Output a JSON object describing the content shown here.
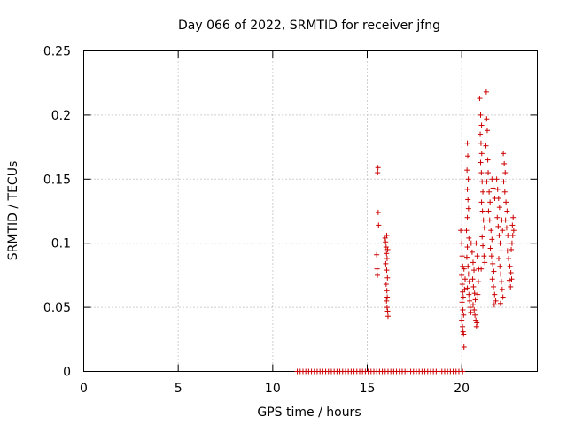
{
  "chart_data": {
    "type": "scatter",
    "title": "Day 066 of 2022, SRMTID for receiver jfng",
    "xlabel": "GPS time / hours",
    "ylabel": "SRMTID / TECUs",
    "xlim": [
      0,
      24
    ],
    "ylim": [
      0,
      0.25
    ],
    "grid": true,
    "legend": "none",
    "marker": "+",
    "color": "#cc0000",
    "x_ticks": [
      0,
      5,
      10,
      15,
      20
    ],
    "x_tick_labels": [
      "0",
      "5",
      "10",
      "15",
      "20"
    ],
    "y_ticks": [
      0,
      0.05,
      0.1,
      0.15,
      0.2,
      0.25
    ],
    "y_tick_labels": [
      "0",
      "0.05",
      "0.1",
      "0.15",
      "0.2",
      "0.25"
    ],
    "series": [
      {
        "points": [
          [
            11.3,
            0
          ],
          [
            11.45,
            0
          ],
          [
            11.6,
            0
          ],
          [
            11.75,
            0
          ],
          [
            11.9,
            0
          ],
          [
            12.05,
            0
          ],
          [
            12.2,
            0
          ],
          [
            12.35,
            0
          ],
          [
            12.5,
            0
          ],
          [
            12.65,
            0
          ],
          [
            12.8,
            0
          ],
          [
            12.95,
            0
          ],
          [
            13.1,
            0
          ],
          [
            13.25,
            0
          ],
          [
            13.4,
            0
          ],
          [
            13.55,
            0
          ],
          [
            13.7,
            0
          ],
          [
            13.85,
            0
          ],
          [
            14.0,
            0
          ],
          [
            14.15,
            0
          ],
          [
            14.3,
            0
          ],
          [
            14.45,
            0
          ],
          [
            14.6,
            0
          ],
          [
            14.75,
            0
          ],
          [
            14.9,
            0
          ],
          [
            15.05,
            0
          ],
          [
            15.2,
            0
          ],
          [
            15.35,
            0
          ],
          [
            15.5,
            0
          ],
          [
            15.65,
            0
          ],
          [
            15.8,
            0
          ],
          [
            15.95,
            0
          ],
          [
            16.1,
            0
          ],
          [
            16.25,
            0
          ],
          [
            16.4,
            0
          ],
          [
            16.55,
            0
          ],
          [
            16.7,
            0
          ],
          [
            16.85,
            0
          ],
          [
            17.0,
            0
          ],
          [
            17.15,
            0
          ],
          [
            17.3,
            0
          ],
          [
            17.45,
            0
          ],
          [
            17.6,
            0
          ],
          [
            17.75,
            0
          ],
          [
            17.9,
            0
          ],
          [
            18.05,
            0
          ],
          [
            18.2,
            0
          ],
          [
            18.35,
            0
          ],
          [
            18.5,
            0
          ],
          [
            18.65,
            0
          ],
          [
            18.8,
            0
          ],
          [
            18.95,
            0
          ],
          [
            19.1,
            0
          ],
          [
            19.25,
            0
          ],
          [
            19.4,
            0
          ],
          [
            19.55,
            0
          ],
          [
            19.7,
            0
          ],
          [
            19.85,
            0
          ],
          [
            20.05,
            0
          ],
          [
            15.55,
            0.155
          ],
          [
            15.57,
            0.159
          ],
          [
            15.58,
            0.124
          ],
          [
            15.6,
            0.114
          ],
          [
            15.5,
            0.091
          ],
          [
            15.52,
            0.08
          ],
          [
            15.54,
            0.075
          ],
          [
            15.95,
            0.104
          ],
          [
            15.97,
            0.101
          ],
          [
            16.0,
            0.097
          ],
          [
            16.02,
            0.092
          ],
          [
            16.05,
            0.088
          ],
          [
            15.98,
            0.084
          ],
          [
            16.03,
            0.079
          ],
          [
            16.07,
            0.073
          ],
          [
            16.0,
            0.068
          ],
          [
            16.04,
            0.063
          ],
          [
            16.06,
            0.058
          ],
          [
            16.02,
            0.055
          ],
          [
            16.05,
            0.05
          ],
          [
            16.08,
            0.047
          ],
          [
            16.1,
            0.043
          ],
          [
            16.03,
            0.106
          ],
          [
            16.08,
            0.095
          ],
          [
            19.95,
            0.11
          ],
          [
            20.0,
            0.1
          ],
          [
            20.02,
            0.09
          ],
          [
            20.05,
            0.082
          ],
          [
            20.0,
            0.075
          ],
          [
            20.03,
            0.068
          ],
          [
            20.05,
            0.062
          ],
          [
            20.08,
            0.058
          ],
          [
            20.02,
            0.054
          ],
          [
            20.06,
            0.048
          ],
          [
            20.1,
            0.044
          ],
          [
            20.0,
            0.04
          ],
          [
            20.04,
            0.035
          ],
          [
            20.07,
            0.031
          ],
          [
            20.1,
            0.029
          ],
          [
            20.12,
            0.019
          ],
          [
            20.15,
            0.064
          ],
          [
            20.18,
            0.072
          ],
          [
            20.12,
            0.08
          ],
          [
            20.3,
            0.178
          ],
          [
            20.32,
            0.168
          ],
          [
            20.28,
            0.157
          ],
          [
            20.35,
            0.15
          ],
          [
            20.3,
            0.142
          ],
          [
            20.33,
            0.134
          ],
          [
            20.36,
            0.127
          ],
          [
            20.3,
            0.12
          ],
          [
            20.25,
            0.11
          ],
          [
            20.38,
            0.104
          ],
          [
            20.3,
            0.097
          ],
          [
            20.27,
            0.089
          ],
          [
            20.33,
            0.082
          ],
          [
            20.36,
            0.076
          ],
          [
            20.4,
            0.07
          ],
          [
            20.3,
            0.065
          ],
          [
            20.38,
            0.06
          ],
          [
            20.42,
            0.055
          ],
          [
            20.45,
            0.05
          ],
          [
            20.48,
            0.046
          ],
          [
            20.5,
            0.1
          ],
          [
            20.55,
            0.093
          ],
          [
            20.6,
            0.085
          ],
          [
            20.65,
            0.079
          ],
          [
            20.58,
            0.072
          ],
          [
            20.62,
            0.066
          ],
          [
            20.68,
            0.061
          ],
          [
            20.72,
            0.056
          ],
          [
            20.6,
            0.052
          ],
          [
            20.66,
            0.048
          ],
          [
            20.7,
            0.044
          ],
          [
            20.75,
            0.04
          ],
          [
            20.8,
            0.038
          ],
          [
            20.78,
            0.035
          ],
          [
            20.85,
            0.06
          ],
          [
            20.88,
            0.07
          ],
          [
            20.9,
            0.08
          ],
          [
            20.82,
            0.09
          ],
          [
            20.76,
            0.1
          ],
          [
            20.95,
            0.213
          ],
          [
            21.0,
            0.2
          ],
          [
            21.05,
            0.192
          ],
          [
            20.98,
            0.185
          ],
          [
            21.02,
            0.178
          ],
          [
            21.06,
            0.17
          ],
          [
            21.0,
            0.163
          ],
          [
            21.04,
            0.155
          ],
          [
            21.08,
            0.148
          ],
          [
            21.12,
            0.14
          ],
          [
            21.05,
            0.132
          ],
          [
            21.1,
            0.125
          ],
          [
            21.15,
            0.118
          ],
          [
            21.2,
            0.112
          ],
          [
            21.08,
            0.105
          ],
          [
            21.12,
            0.098
          ],
          [
            21.18,
            0.09
          ],
          [
            21.22,
            0.085
          ],
          [
            21.03,
            0.08
          ],
          [
            21.3,
            0.218
          ],
          [
            21.32,
            0.197
          ],
          [
            21.35,
            0.188
          ],
          [
            21.28,
            0.176
          ],
          [
            21.38,
            0.165
          ],
          [
            21.4,
            0.155
          ],
          [
            21.33,
            0.148
          ],
          [
            21.45,
            0.14
          ],
          [
            21.5,
            0.132
          ],
          [
            21.42,
            0.125
          ],
          [
            21.48,
            0.118
          ],
          [
            21.55,
            0.11
          ],
          [
            21.6,
            0.103
          ],
          [
            21.52,
            0.096
          ],
          [
            21.58,
            0.09
          ],
          [
            21.64,
            0.084
          ],
          [
            21.7,
            0.078
          ],
          [
            21.62,
            0.072
          ],
          [
            21.68,
            0.066
          ],
          [
            21.74,
            0.06
          ],
          [
            21.8,
            0.055
          ],
          [
            21.72,
            0.052
          ],
          [
            21.6,
            0.15
          ],
          [
            21.66,
            0.143
          ],
          [
            21.75,
            0.135
          ],
          [
            21.85,
            0.15
          ],
          [
            21.9,
            0.142
          ],
          [
            21.95,
            0.135
          ],
          [
            22.0,
            0.128
          ],
          [
            21.88,
            0.12
          ],
          [
            21.93,
            0.113
          ],
          [
            21.98,
            0.106
          ],
          [
            22.03,
            0.1
          ],
          [
            22.08,
            0.094
          ],
          [
            21.96,
            0.088
          ],
          [
            22.02,
            0.082
          ],
          [
            22.06,
            0.076
          ],
          [
            22.1,
            0.07
          ],
          [
            22.14,
            0.064
          ],
          [
            22.18,
            0.058
          ],
          [
            22.05,
            0.053
          ],
          [
            22.12,
            0.118
          ],
          [
            22.16,
            0.11
          ],
          [
            22.2,
            0.17
          ],
          [
            22.25,
            0.162
          ],
          [
            22.3,
            0.155
          ],
          [
            22.22,
            0.148
          ],
          [
            22.28,
            0.14
          ],
          [
            22.34,
            0.132
          ],
          [
            22.4,
            0.125
          ],
          [
            22.32,
            0.118
          ],
          [
            22.38,
            0.112
          ],
          [
            22.44,
            0.106
          ],
          [
            22.5,
            0.1
          ],
          [
            22.42,
            0.094
          ],
          [
            22.48,
            0.088
          ],
          [
            22.55,
            0.082
          ],
          [
            22.6,
            0.077
          ],
          [
            22.52,
            0.071
          ],
          [
            22.58,
            0.066
          ],
          [
            22.64,
            0.072
          ],
          [
            22.7,
            0.106
          ],
          [
            22.75,
            0.11
          ],
          [
            22.68,
            0.114
          ],
          [
            22.72,
            0.12
          ],
          [
            22.62,
            0.095
          ],
          [
            22.66,
            0.1
          ]
        ]
      }
    ]
  }
}
